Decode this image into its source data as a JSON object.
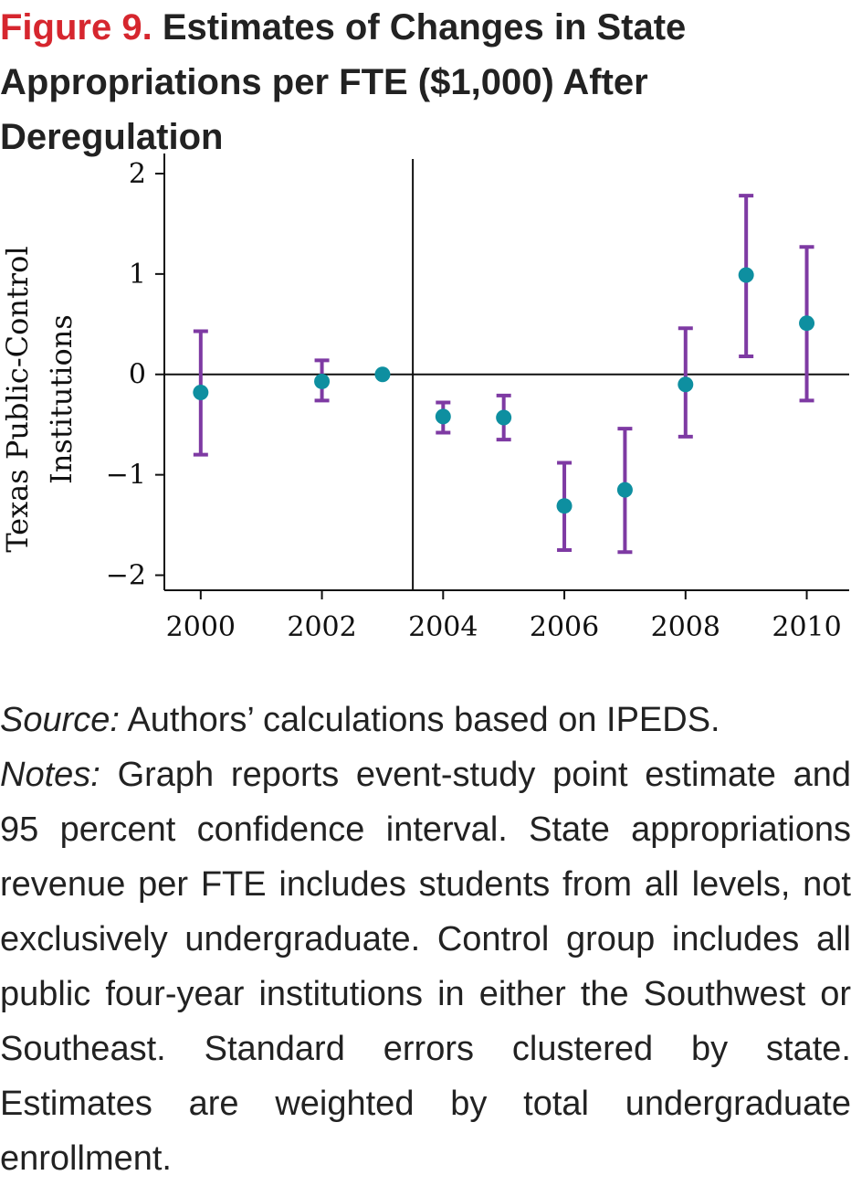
{
  "figure": {
    "label": "Figure 9.",
    "title": "Estimates of Changes in State Appropriations per FTE ($1,000) After Deregulation"
  },
  "chart_data": {
    "type": "scatter",
    "title": "Estimates of Changes in State Appropriations per FTE ($1,000) After Deregulation",
    "ylabel_lines": [
      "Texas Public-Control",
      "Institutions"
    ],
    "xlabel": "",
    "xlim": [
      1999.4,
      2010.7
    ],
    "ylim": [
      -2.15,
      2.2
    ],
    "x_ticks": [
      2000,
      2002,
      2004,
      2006,
      2008,
      2010
    ],
    "y_ticks": [
      2,
      1,
      0,
      -1,
      -2
    ],
    "y_tick_labels": [
      "2",
      "1",
      "0",
      "−1",
      "−2"
    ],
    "reference_line_y": 0,
    "event_line_x": 2003.5,
    "grid": false,
    "legend": "none",
    "colors": {
      "point": "#0e8fa0",
      "interval": "#7e3aa3",
      "axis": "#111111"
    },
    "points": [
      {
        "x": 2000,
        "y": -0.18,
        "lo": -0.8,
        "hi": 0.43
      },
      {
        "x": 2002,
        "y": -0.07,
        "lo": -0.26,
        "hi": 0.14
      },
      {
        "x": 2003,
        "y": 0.0,
        "lo": null,
        "hi": null
      },
      {
        "x": 2004,
        "y": -0.42,
        "lo": -0.58,
        "hi": -0.28
      },
      {
        "x": 2005,
        "y": -0.43,
        "lo": -0.65,
        "hi": -0.21
      },
      {
        "x": 2006,
        "y": -1.31,
        "lo": -1.75,
        "hi": -0.88
      },
      {
        "x": 2007,
        "y": -1.15,
        "lo": -1.77,
        "hi": -0.54
      },
      {
        "x": 2008,
        "y": -0.1,
        "lo": -0.62,
        "hi": 0.46
      },
      {
        "x": 2009,
        "y": 0.99,
        "lo": 0.18,
        "hi": 1.78
      },
      {
        "x": 2010,
        "y": 0.51,
        "lo": -0.26,
        "hi": 1.27
      }
    ]
  },
  "source": {
    "label": "Source:",
    "text": "Authors’ calculations based on IPEDS."
  },
  "notes": {
    "label": "Notes:",
    "text": "Graph reports event-study point estimate and 95 percent confidence interval. State appropriations revenue per FTE includes students from all levels, not exclusively undergraduate. Control group includes all public four-year institutions in either the Southwest or Southeast. Standard errors clustered by state. Estimates are weighted by total undergraduate enrollment."
  }
}
